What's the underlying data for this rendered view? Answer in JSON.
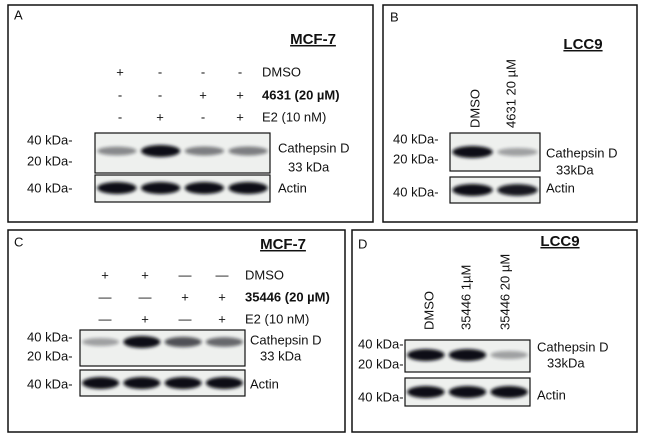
{
  "panels": [
    {
      "label": "A",
      "cell_line": "MCF-7",
      "conditions": [
        {
          "name": "DMSO",
          "signs": [
            "+",
            "-",
            "-",
            "-"
          ]
        },
        {
          "name": "4631 (20 µM)",
          "signs": [
            "-",
            "-",
            "+",
            "+"
          ]
        },
        {
          "name": "E2 (10 nM)",
          "signs": [
            "-",
            "+",
            "-",
            "+"
          ]
        }
      ],
      "blots": [
        {
          "markers": [
            "40 kDa-",
            "20 kDa-"
          ],
          "labels": [
            "Cathepsin D",
            "33 kDa"
          ]
        },
        {
          "markers": [
            "40 kDa-"
          ],
          "labels": [
            "Actin"
          ]
        }
      ]
    },
    {
      "label": "B",
      "cell_line": "LCC9",
      "lanes": [
        "DMSO",
        "4631 20 µM"
      ],
      "blots": [
        {
          "markers": [
            "40 kDa-",
            "20 kDa-"
          ],
          "labels": [
            "Cathepsin D",
            "33kDa"
          ]
        },
        {
          "markers": [
            "40 kDa-"
          ],
          "labels": [
            "Actin"
          ]
        }
      ]
    },
    {
      "label": "C",
      "cell_line": "MCF-7",
      "conditions": [
        {
          "name": "DMSO",
          "signs": [
            "+",
            "+",
            "—",
            "—"
          ]
        },
        {
          "name": "35446 (20 µM)",
          "signs": [
            "—",
            "—",
            "+",
            "+"
          ]
        },
        {
          "name": "E2 (10 nM)",
          "signs": [
            "—",
            "+",
            "—",
            "+"
          ]
        }
      ],
      "blots": [
        {
          "markers": [
            "40 kDa-",
            "20 kDa-"
          ],
          "labels": [
            "Cathepsin D",
            "33 kDa"
          ]
        },
        {
          "markers": [
            "40 kDa-"
          ],
          "labels": [
            "Actin"
          ]
        }
      ]
    },
    {
      "label": "D",
      "cell_line": "LCC9",
      "lanes": [
        "DMSO",
        "35446 1µM",
        "35446 20 µM"
      ],
      "blots": [
        {
          "markers": [
            "40 kDa-",
            "20 kDa-"
          ],
          "labels": [
            "Cathepsin D",
            "33kDa"
          ]
        },
        {
          "markers": [
            "40 kDa-"
          ],
          "labels": [
            "Actin"
          ]
        }
      ]
    }
  ]
}
